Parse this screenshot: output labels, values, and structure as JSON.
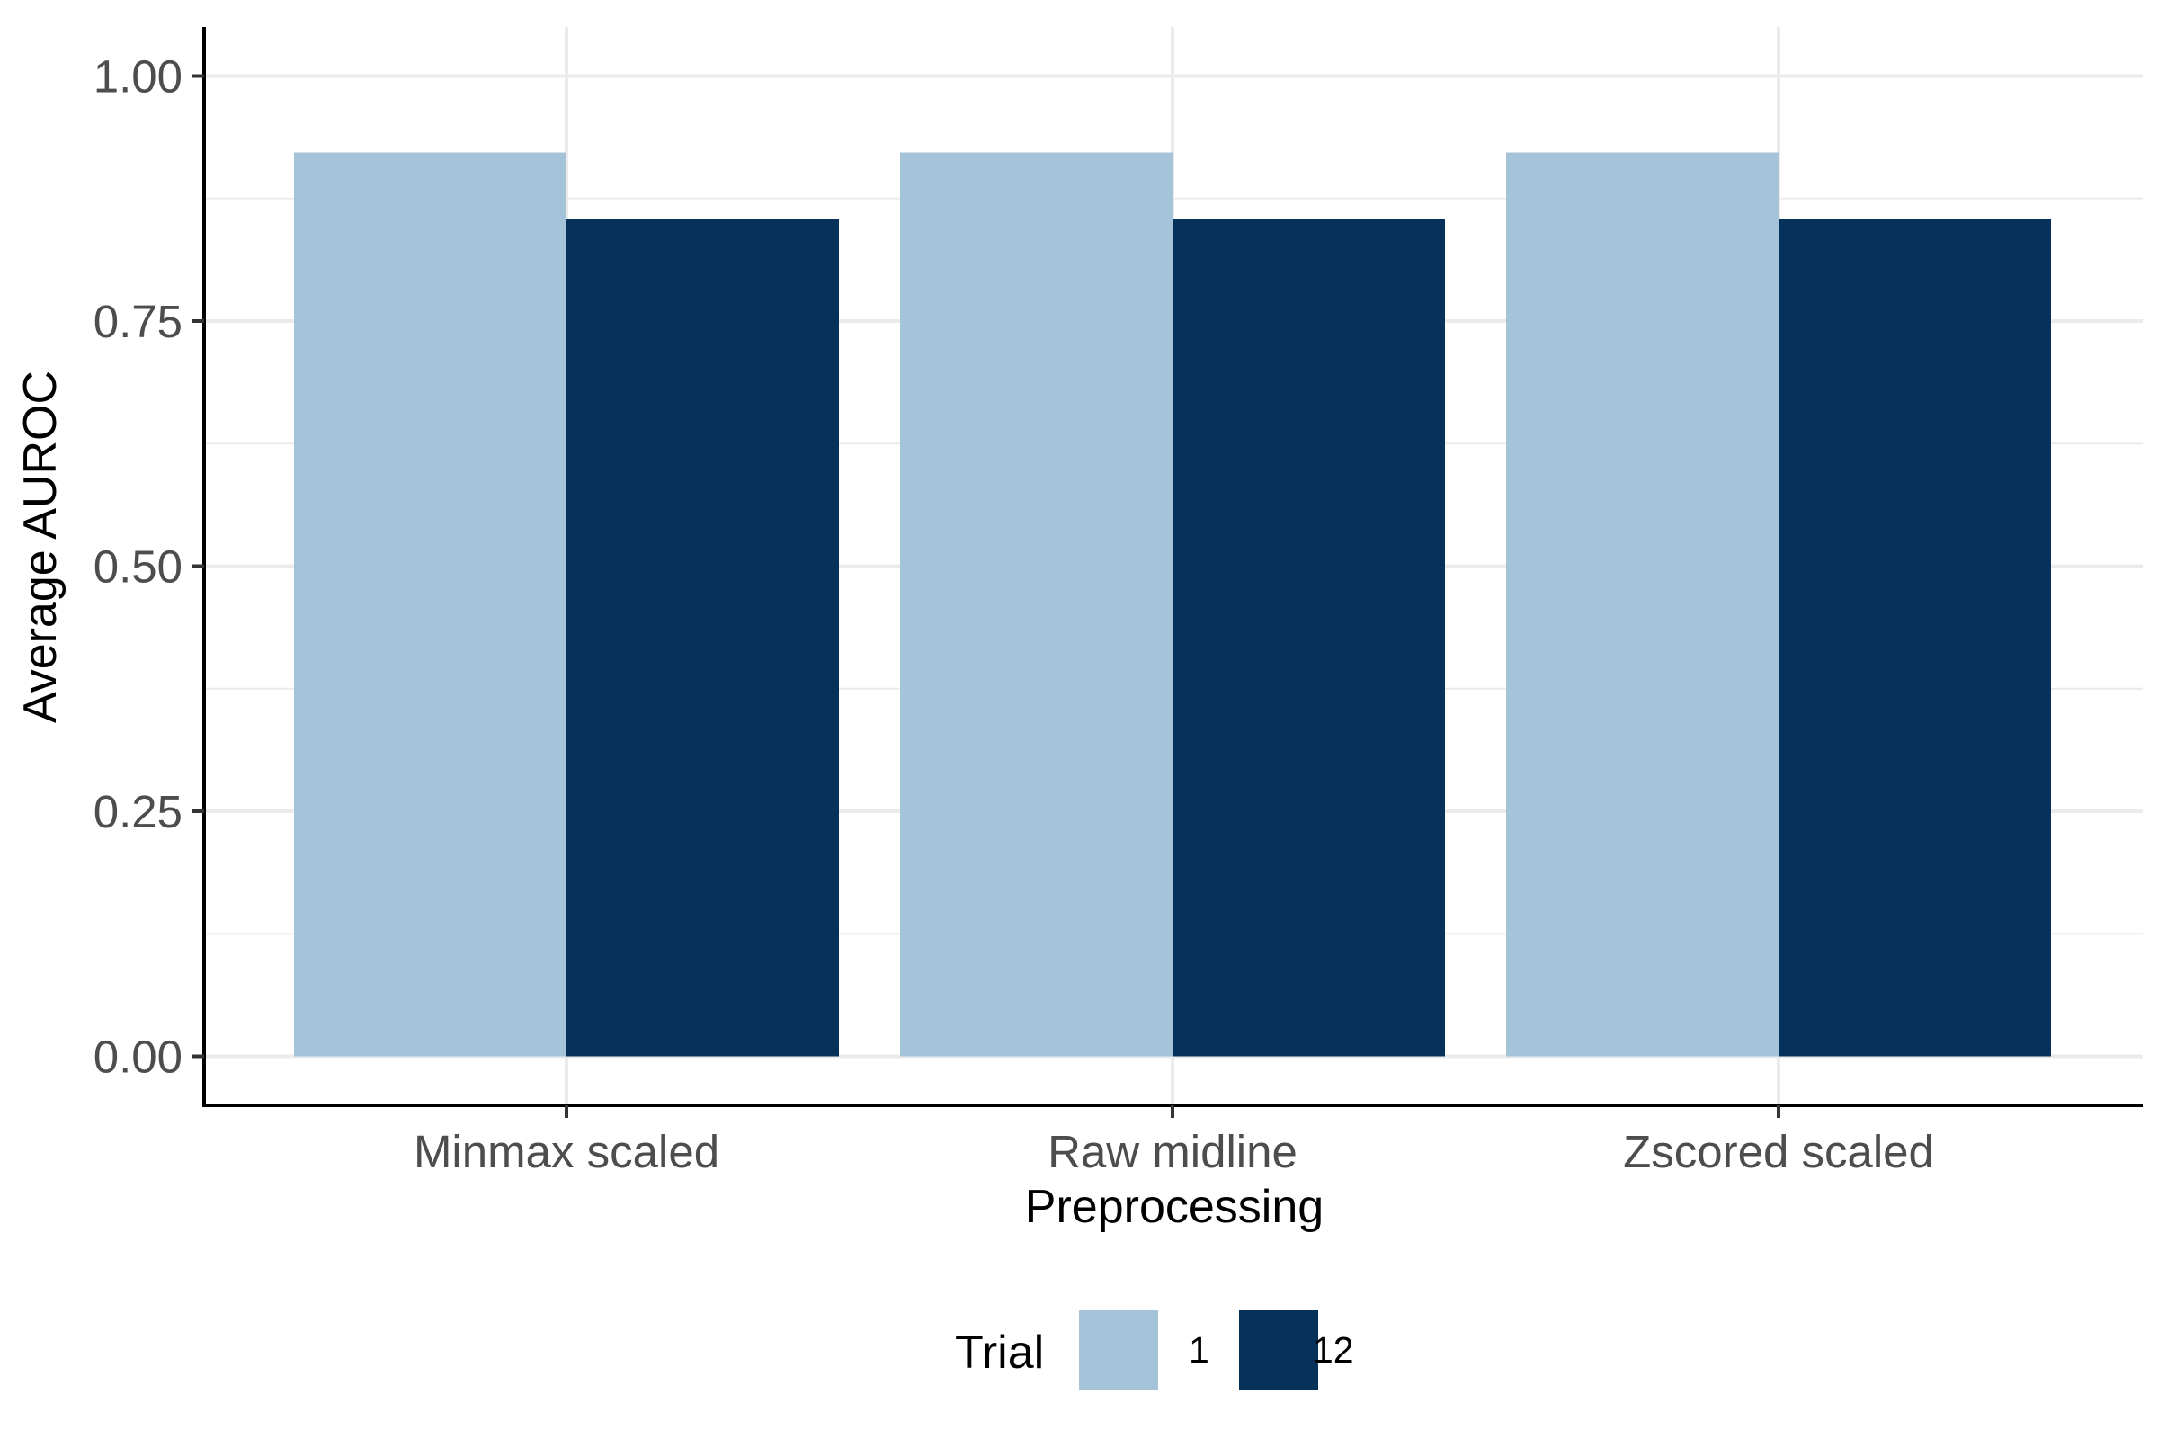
{
  "chart_data": {
    "type": "bar",
    "categories": [
      "Minmax scaled",
      "Raw midline",
      "Zscored scaled"
    ],
    "series": [
      {
        "name": "1",
        "values": [
          0.922,
          0.922,
          0.922
        ],
        "color": "#a6c4d9"
      },
      {
        "name": "12",
        "values": [
          0.854,
          0.854,
          0.854
        ],
        "color": "#05315a"
      }
    ],
    "title": "",
    "xlabel": "Preprocessing",
    "ylabel": "Average AUROC",
    "ylim": [
      -0.05,
      1.05
    ],
    "yticks": [
      0.0,
      0.25,
      0.5,
      0.75,
      1.0
    ],
    "ytick_labels": [
      "0.00",
      "0.25",
      "0.50",
      "0.75",
      "1.00"
    ],
    "grid": true,
    "legend": {
      "title": "Trial",
      "position": "bottom",
      "entries": [
        "1",
        "12"
      ]
    }
  }
}
